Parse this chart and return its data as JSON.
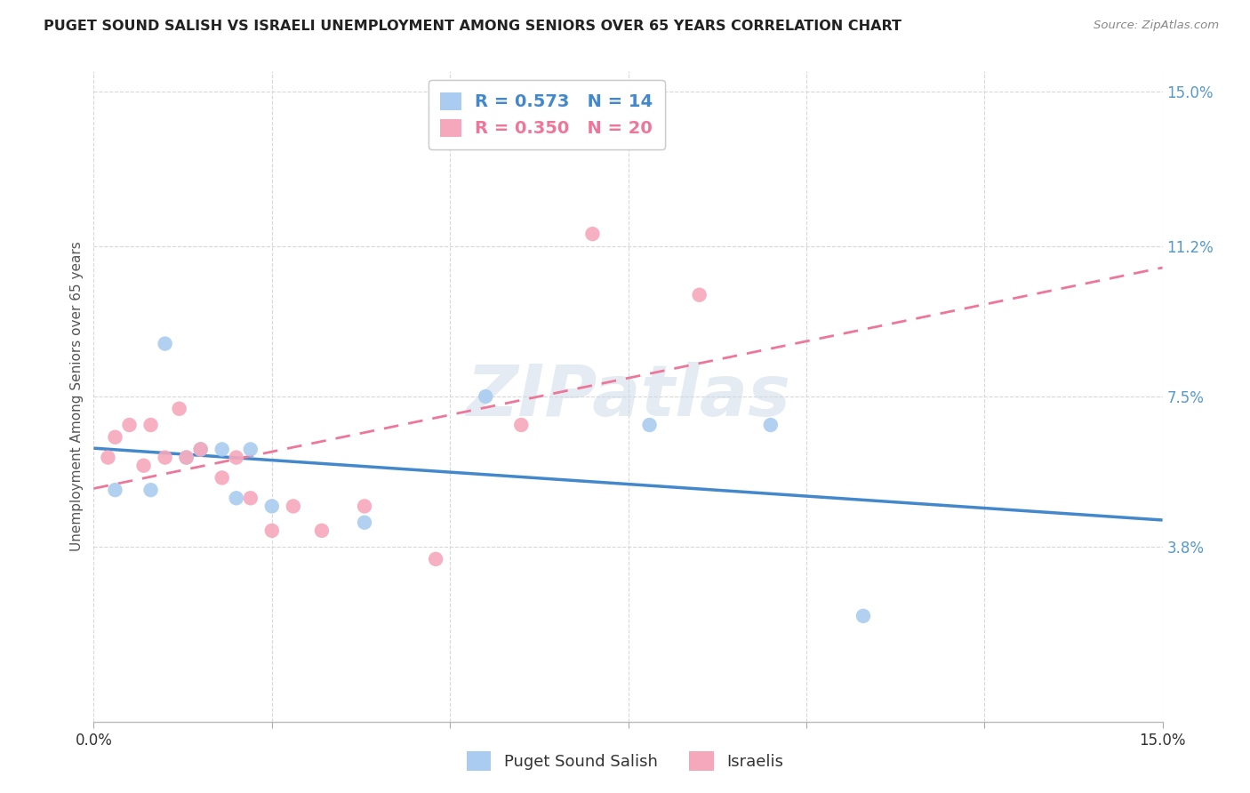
{
  "title": "PUGET SOUND SALISH VS ISRAELI UNEMPLOYMENT AMONG SENIORS OVER 65 YEARS CORRELATION CHART",
  "source": "Source: ZipAtlas.com",
  "ylabel": "Unemployment Among Seniors over 65 years",
  "xlim": [
    0.0,
    0.15
  ],
  "ylim": [
    -0.005,
    0.155
  ],
  "xtick_positions": [
    0.0,
    0.025,
    0.05,
    0.075,
    0.1,
    0.125,
    0.15
  ],
  "xtick_labels": [
    "0.0%",
    "",
    "",
    "",
    "",
    "",
    "15.0%"
  ],
  "ytick_right_positions": [
    0.038,
    0.075,
    0.112,
    0.15
  ],
  "ytick_right_labels": [
    "3.8%",
    "7.5%",
    "11.2%",
    "15.0%"
  ],
  "color_salish": "#aaccf0",
  "color_israeli": "#f5a8bc",
  "color_salish_line": "#4488cc",
  "color_israeli_line": "#ee7799",
  "salish_R": 0.573,
  "salish_N": 14,
  "israeli_R": 0.35,
  "israeli_N": 20,
  "watermark": "ZIPatlas",
  "salish_x": [
    0.003,
    0.008,
    0.01,
    0.013,
    0.015,
    0.018,
    0.02,
    0.022,
    0.025,
    0.038,
    0.055,
    0.078,
    0.095,
    0.108
  ],
  "salish_y": [
    0.052,
    0.052,
    0.088,
    0.06,
    0.062,
    0.062,
    0.05,
    0.062,
    0.048,
    0.044,
    0.075,
    0.068,
    0.068,
    0.021
  ],
  "israeli_x": [
    0.002,
    0.003,
    0.005,
    0.007,
    0.008,
    0.01,
    0.012,
    0.013,
    0.015,
    0.018,
    0.02,
    0.022,
    0.025,
    0.028,
    0.032,
    0.038,
    0.048,
    0.06,
    0.07,
    0.085
  ],
  "israeli_y": [
    0.06,
    0.065,
    0.068,
    0.058,
    0.068,
    0.06,
    0.072,
    0.06,
    0.062,
    0.055,
    0.06,
    0.05,
    0.042,
    0.048,
    0.042,
    0.048,
    0.035,
    0.068,
    0.115,
    0.1
  ]
}
